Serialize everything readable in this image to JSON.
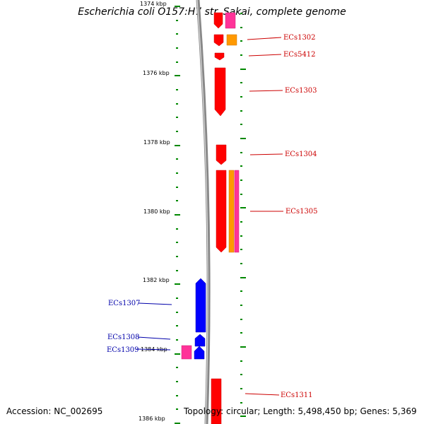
{
  "title": "Escherichia coli O157:H7 str. Sakai, complete genome",
  "footer": {
    "accession": "Accession: NC_002695",
    "summary": "Topology: circular; Length: 5,498,450 bp; Genes: 5,369"
  },
  "scale": {
    "tick_labels": [
      "1374 kbp",
      "1376 kbp",
      "1378 kbp",
      "1380 kbp",
      "1382 kbp",
      "1384 kbp",
      "1386 kbp"
    ]
  },
  "colors": {
    "forward_gene": "#ff0000",
    "reverse_gene": "#0000ff",
    "rna_gene": "#ff3399",
    "orange_feature": "#ff9900",
    "tick": "#008800",
    "backbone": "#888888",
    "label_forward": "#cc0000",
    "label_reverse": "#0000aa"
  },
  "genes": {
    "right": [
      "ECs1302",
      "ECs5412",
      "ECs1303",
      "ECs1304",
      "ECs1305",
      "ECs1311"
    ],
    "left": [
      "ECs1307",
      "ECs1308",
      "ECs1309"
    ]
  }
}
